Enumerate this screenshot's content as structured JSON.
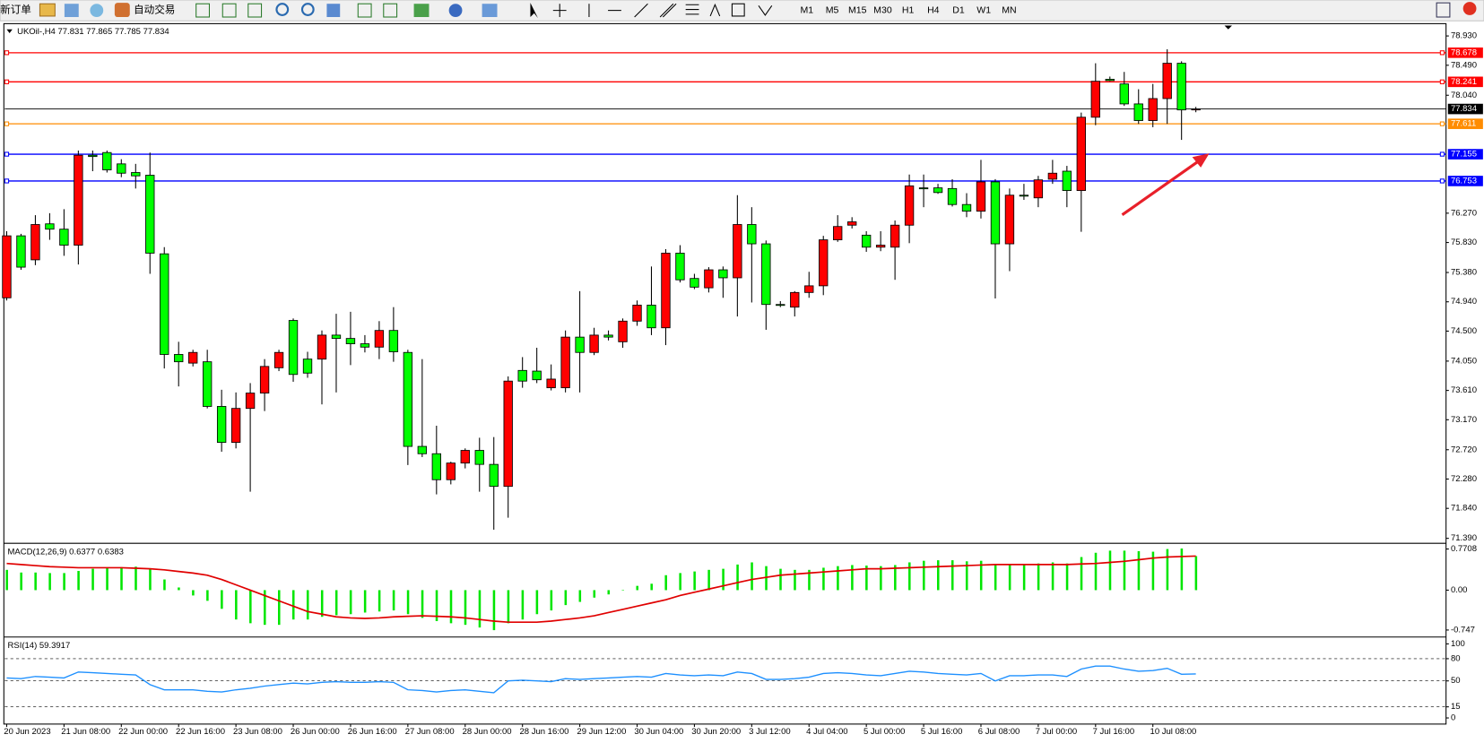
{
  "toolbar": {
    "new_order": "新订单",
    "auto_trading": "自动交易",
    "timeframes": [
      "M1",
      "M5",
      "M15",
      "M30",
      "H1",
      "H4",
      "D1",
      "W1",
      "MN"
    ]
  },
  "chart_data": [
    {
      "type": "candlestick",
      "symbol": "UKOil-,H4",
      "categories": [
        "20 Jun 2023",
        null,
        null,
        null,
        "21 Jun 08:00",
        null,
        null,
        null,
        "22 Jun 00:00",
        null,
        null,
        null,
        "22 Jun 16:00",
        null,
        null,
        null,
        "23 Jun 08:00",
        null,
        null,
        null,
        "26 Jun 00:00",
        null,
        null,
        null,
        "26 Jun 16:00",
        null,
        null,
        null,
        "27 Jun 08:00",
        null,
        null,
        null,
        "28 Jun 00:00",
        null,
        null,
        null,
        "28 Jun 16:00",
        null,
        null,
        null,
        "29 Jun 12:00",
        null,
        null,
        null,
        "30 Jun 04:00",
        null,
        null,
        null,
        "30 Jun 20:00",
        null,
        null,
        null,
        "3 Jul 12:00",
        null,
        null,
        null,
        "4 Jul 04:00",
        null,
        null,
        null,
        "5 Jul 00:00",
        null,
        null,
        null,
        "5 Jul 16:00",
        null,
        null,
        null,
        "6 Jul 08:00",
        null,
        null,
        null,
        "7 Jul 00:00",
        null,
        null,
        null,
        "7 Jul 16:00",
        null,
        null,
        null,
        "10 Jul 08:00",
        null,
        null,
        null
      ],
      "open": [
        75.0,
        75.93,
        75.57,
        76.11,
        76.03,
        75.79,
        77.14,
        77.18,
        77.01,
        76.88,
        76.84,
        75.66,
        74.15,
        74.02,
        74.04,
        73.37,
        72.83,
        73.34,
        73.57,
        73.95,
        74.66,
        74.08,
        74.08,
        74.44,
        74.39,
        74.31,
        74.26,
        74.51,
        74.18,
        72.77,
        72.66,
        72.27,
        72.52,
        72.71,
        72.5,
        72.17,
        73.91,
        73.9,
        73.65,
        73.65,
        74.41,
        74.18,
        74.44,
        74.34,
        74.65,
        74.89,
        74.55,
        75.67,
        75.29,
        75.15,
        75.42,
        75.3,
        76.1,
        75.81,
        74.9,
        74.86,
        75.08,
        75.18,
        75.87,
        76.09,
        75.94,
        75.76,
        75.76,
        76.09,
        76.65,
        76.65,
        76.64,
        76.4,
        76.3,
        76.74,
        75.81,
        76.54,
        76.5,
        76.78,
        76.9,
        76.61,
        77.71,
        78.28,
        78.21,
        77.91,
        77.66,
        77.99,
        78.52,
        77.831
      ],
      "high": [
        76.0,
        75.96,
        76.24,
        76.27,
        76.33,
        77.21,
        77.21,
        77.21,
        77.08,
        77.01,
        77.18,
        75.76,
        74.34,
        74.22,
        74.22,
        73.62,
        73.58,
        73.72,
        74.08,
        74.22,
        74.69,
        74.19,
        74.51,
        74.76,
        74.79,
        74.44,
        74.65,
        74.86,
        74.22,
        74.08,
        73.08,
        72.54,
        72.74,
        72.9,
        72.91,
        73.82,
        74.11,
        74.25,
        74.0,
        74.51,
        75.1,
        74.55,
        74.51,
        74.69,
        74.96,
        75.47,
        75.73,
        75.79,
        75.36,
        75.46,
        75.47,
        76.54,
        76.36,
        75.86,
        74.95,
        75.1,
        75.39,
        75.93,
        76.24,
        76.21,
        76.0,
        76.0,
        76.16,
        76.85,
        76.85,
        76.71,
        76.78,
        76.57,
        77.07,
        76.78,
        76.64,
        76.71,
        76.83,
        77.07,
        76.98,
        77.78,
        78.52,
        78.32,
        78.39,
        78.13,
        78.21,
        78.73,
        78.55,
        77.865
      ],
      "low": [
        74.96,
        75.42,
        75.49,
        75.87,
        75.63,
        75.5,
        76.9,
        76.88,
        76.81,
        76.64,
        75.36,
        73.94,
        73.67,
        73.97,
        73.34,
        72.69,
        72.74,
        72.09,
        73.3,
        73.9,
        73.74,
        73.8,
        73.4,
        73.58,
        73.99,
        74.18,
        74.08,
        74.04,
        72.49,
        72.61,
        72.05,
        72.2,
        72.44,
        72.09,
        71.52,
        71.7,
        73.65,
        73.72,
        73.61,
        73.58,
        73.58,
        74.14,
        74.36,
        74.25,
        74.58,
        74.44,
        74.29,
        75.23,
        75.13,
        75.08,
        75.0,
        74.72,
        74.93,
        74.52,
        74.86,
        74.72,
        75.0,
        75.04,
        75.84,
        76.04,
        75.69,
        75.7,
        75.27,
        75.82,
        76.36,
        76.56,
        76.37,
        76.21,
        76.19,
        74.99,
        75.4,
        76.47,
        76.36,
        76.71,
        76.36,
        75.99,
        77.59,
        78.25,
        77.88,
        77.61,
        77.56,
        77.61,
        77.37,
        77.785
      ],
      "close": [
        75.93,
        75.46,
        76.1,
        76.03,
        75.79,
        77.14,
        77.12,
        76.92,
        76.87,
        76.83,
        75.67,
        74.15,
        74.04,
        74.18,
        73.37,
        72.83,
        73.34,
        73.57,
        73.97,
        74.18,
        73.85,
        73.87,
        74.44,
        74.39,
        74.31,
        74.26,
        74.51,
        74.19,
        72.77,
        72.66,
        72.27,
        72.52,
        72.71,
        72.5,
        72.17,
        73.75,
        73.75,
        73.77,
        73.78,
        74.41,
        74.18,
        74.44,
        74.41,
        74.65,
        74.89,
        74.55,
        75.67,
        75.27,
        75.16,
        75.42,
        75.3,
        76.1,
        75.81,
        74.9,
        74.89,
        75.08,
        75.18,
        75.87,
        76.07,
        76.14,
        75.76,
        75.79,
        76.09,
        76.68,
        76.64,
        76.58,
        76.4,
        76.3,
        76.74,
        75.81,
        76.54,
        76.53,
        76.77,
        76.87,
        76.61,
        77.71,
        78.25,
        78.26,
        77.91,
        77.66,
        77.99,
        78.52,
        77.82,
        77.834
      ],
      "up_color": "#ff0000",
      "down_color": "#00ff00",
      "grid": false,
      "ylim": [
        71.33,
        79.1
      ],
      "yticks": [
        {
          "value": 78.93,
          "label": "78.930"
        },
        {
          "value": 78.49,
          "label": "78.490"
        },
        {
          "value": 78.04,
          "label": "78.040"
        },
        {
          "value": 76.27,
          "label": "76.270"
        },
        {
          "value": 75.83,
          "label": "75.830"
        },
        {
          "value": 75.38,
          "label": "75.380"
        },
        {
          "value": 74.94,
          "label": "74.940"
        },
        {
          "value": 74.5,
          "label": "74.500"
        },
        {
          "value": 74.05,
          "label": "74.050"
        },
        {
          "value": 73.61,
          "label": "73.610"
        },
        {
          "value": 73.17,
          "label": "73.170"
        },
        {
          "value": 72.72,
          "label": "72.720"
        },
        {
          "value": 72.28,
          "label": "72.280"
        },
        {
          "value": 71.84,
          "label": "71.840"
        },
        {
          "value": 71.39,
          "label": "71.390"
        }
      ],
      "hlines": [
        {
          "value": 78.678,
          "color": "#ff0000"
        },
        {
          "value": 78.241,
          "color": "#ff0000"
        },
        {
          "value": 77.611,
          "color": "#ff8c00"
        },
        {
          "value": 77.155,
          "color": "#0000ff"
        },
        {
          "value": 76.753,
          "color": "#0000ff"
        }
      ],
      "price_line_color": "#000000"
    },
    {
      "type": "macd",
      "title": "MACD(12,26,9)",
      "histogram": {
        "color": "#00e600",
        "values": [
          0.38,
          0.33,
          0.33,
          0.32,
          0.32,
          0.36,
          0.4,
          0.42,
          0.43,
          0.44,
          0.4,
          0.2,
          0.05,
          -0.1,
          -0.2,
          -0.35,
          -0.55,
          -0.62,
          -0.65,
          -0.65,
          -0.55,
          -0.55,
          -0.5,
          -0.47,
          -0.45,
          -0.42,
          -0.4,
          -0.38,
          -0.45,
          -0.52,
          -0.58,
          -0.62,
          -0.65,
          -0.7,
          -0.75,
          -0.62,
          -0.55,
          -0.45,
          -0.38,
          -0.28,
          -0.22,
          -0.14,
          -0.08,
          0.0,
          0.08,
          0.12,
          0.28,
          0.32,
          0.35,
          0.38,
          0.4,
          0.48,
          0.52,
          0.45,
          0.4,
          0.38,
          0.38,
          0.42,
          0.45,
          0.47,
          0.46,
          0.45,
          0.47,
          0.52,
          0.55,
          0.56,
          0.56,
          0.54,
          0.55,
          0.48,
          0.48,
          0.48,
          0.5,
          0.52,
          0.5,
          0.62,
          0.7,
          0.74,
          0.74,
          0.73,
          0.72,
          0.77,
          0.78,
          0.6377
        ]
      },
      "signal": {
        "color": "#e00000",
        "values": [
          0.5,
          0.48,
          0.46,
          0.44,
          0.43,
          0.42,
          0.42,
          0.42,
          0.42,
          0.41,
          0.4,
          0.38,
          0.35,
          0.32,
          0.28,
          0.2,
          0.1,
          0.0,
          -0.1,
          -0.2,
          -0.3,
          -0.4,
          -0.45,
          -0.5,
          -0.52,
          -0.53,
          -0.52,
          -0.5,
          -0.49,
          -0.48,
          -0.49,
          -0.5,
          -0.52,
          -0.55,
          -0.58,
          -0.6,
          -0.6,
          -0.6,
          -0.58,
          -0.55,
          -0.52,
          -0.48,
          -0.42,
          -0.36,
          -0.3,
          -0.24,
          -0.18,
          -0.1,
          -0.04,
          0.02,
          0.08,
          0.14,
          0.2,
          0.24,
          0.28,
          0.3,
          0.32,
          0.34,
          0.36,
          0.38,
          0.4,
          0.4,
          0.41,
          0.42,
          0.43,
          0.44,
          0.45,
          0.46,
          0.47,
          0.48,
          0.48,
          0.48,
          0.48,
          0.48,
          0.48,
          0.49,
          0.5,
          0.52,
          0.54,
          0.57,
          0.6,
          0.62,
          0.63,
          0.6383
        ]
      },
      "ylim": [
        -0.86,
        0.86
      ],
      "yticks": [
        0.7708,
        {
          "value": 0,
          "label": "0.00"
        },
        -0.747
      ]
    },
    {
      "type": "rsi",
      "title": "RSI(14)",
      "color": "#1e90ff",
      "values": [
        54,
        53,
        56,
        55,
        54,
        62,
        61,
        60,
        59,
        58,
        45,
        38,
        38,
        38,
        36,
        35,
        38,
        40,
        43,
        45,
        47,
        46,
        48,
        49,
        48,
        48,
        49,
        48,
        38,
        37,
        35,
        37,
        38,
        36,
        34,
        50,
        51,
        50,
        49,
        53,
        52,
        53,
        54,
        55,
        56,
        55,
        60,
        58,
        57,
        58,
        57,
        62,
        60,
        52,
        52,
        53,
        55,
        60,
        61,
        60,
        58,
        57,
        60,
        63,
        62,
        60,
        59,
        58,
        60,
        50,
        57,
        57,
        58,
        58,
        56,
        66,
        70,
        70,
        66,
        63,
        64,
        67,
        59,
        59.3917
      ],
      "ylim": [
        -7,
        108
      ],
      "yticks": [
        100,
        80,
        50,
        15,
        0
      ],
      "levels": [
        80,
        50,
        15
      ]
    }
  ]
}
